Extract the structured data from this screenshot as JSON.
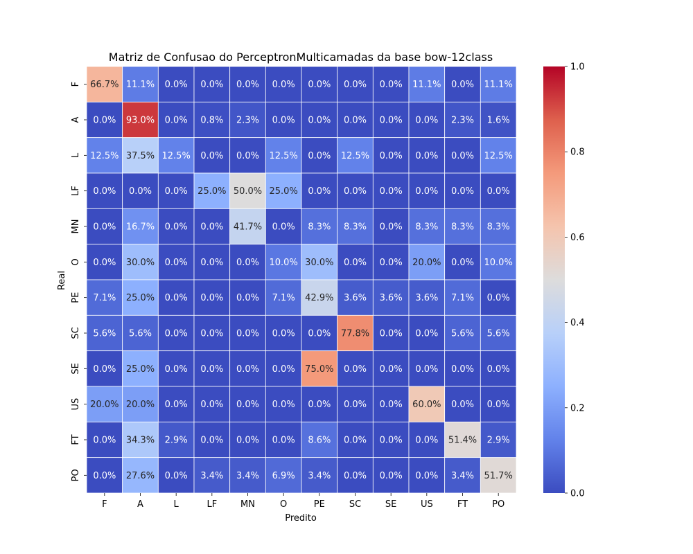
{
  "chart_data": {
    "type": "heatmap",
    "title": "Matriz de Confusao do PerceptronMulticamadas da base bow-12class",
    "xlabel": "Predito",
    "ylabel": "Real",
    "x_categories": [
      "F",
      "A",
      "L",
      "LF",
      "MN",
      "O",
      "PE",
      "SC",
      "SE",
      "US",
      "FT",
      "PO"
    ],
    "y_categories": [
      "F",
      "A",
      "L",
      "LF",
      "MN",
      "O",
      "PE",
      "SC",
      "SE",
      "US",
      "FT",
      "PO"
    ],
    "values": [
      [
        0.667,
        0.111,
        0.0,
        0.0,
        0.0,
        0.0,
        0.0,
        0.0,
        0.0,
        0.111,
        0.0,
        0.111
      ],
      [
        0.0,
        0.93,
        0.0,
        0.008,
        0.023,
        0.0,
        0.0,
        0.0,
        0.0,
        0.0,
        0.023,
        0.016
      ],
      [
        0.125,
        0.375,
        0.125,
        0.0,
        0.0,
        0.125,
        0.0,
        0.125,
        0.0,
        0.0,
        0.0,
        0.125
      ],
      [
        0.0,
        0.0,
        0.0,
        0.25,
        0.5,
        0.25,
        0.0,
        0.0,
        0.0,
        0.0,
        0.0,
        0.0
      ],
      [
        0.0,
        0.167,
        0.0,
        0.0,
        0.417,
        0.0,
        0.083,
        0.083,
        0.0,
        0.083,
        0.083,
        0.083
      ],
      [
        0.0,
        0.3,
        0.0,
        0.0,
        0.0,
        0.1,
        0.3,
        0.0,
        0.0,
        0.2,
        0.0,
        0.1
      ],
      [
        0.071,
        0.25,
        0.0,
        0.0,
        0.0,
        0.071,
        0.429,
        0.036,
        0.036,
        0.036,
        0.071,
        0.0
      ],
      [
        0.056,
        0.056,
        0.0,
        0.0,
        0.0,
        0.0,
        0.0,
        0.778,
        0.0,
        0.0,
        0.056,
        0.056
      ],
      [
        0.0,
        0.25,
        0.0,
        0.0,
        0.0,
        0.0,
        0.75,
        0.0,
        0.0,
        0.0,
        0.0,
        0.0
      ],
      [
        0.2,
        0.2,
        0.0,
        0.0,
        0.0,
        0.0,
        0.0,
        0.0,
        0.0,
        0.6,
        0.0,
        0.0
      ],
      [
        0.0,
        0.343,
        0.029,
        0.0,
        0.0,
        0.0,
        0.086,
        0.0,
        0.0,
        0.0,
        0.514,
        0.029
      ],
      [
        0.0,
        0.276,
        0.0,
        0.034,
        0.034,
        0.069,
        0.034,
        0.0,
        0.0,
        0.0,
        0.034,
        0.517
      ]
    ],
    "cell_labels": [
      [
        "66.7%",
        "11.1%",
        "0.0%",
        "0.0%",
        "0.0%",
        "0.0%",
        "0.0%",
        "0.0%",
        "0.0%",
        "11.1%",
        "0.0%",
        "11.1%"
      ],
      [
        "0.0%",
        "93.0%",
        "0.0%",
        "0.8%",
        "2.3%",
        "0.0%",
        "0.0%",
        "0.0%",
        "0.0%",
        "0.0%",
        "2.3%",
        "1.6%"
      ],
      [
        "12.5%",
        "37.5%",
        "12.5%",
        "0.0%",
        "0.0%",
        "12.5%",
        "0.0%",
        "12.5%",
        "0.0%",
        "0.0%",
        "0.0%",
        "12.5%"
      ],
      [
        "0.0%",
        "0.0%",
        "0.0%",
        "25.0%",
        "50.0%",
        "25.0%",
        "0.0%",
        "0.0%",
        "0.0%",
        "0.0%",
        "0.0%",
        "0.0%"
      ],
      [
        "0.0%",
        "16.7%",
        "0.0%",
        "0.0%",
        "41.7%",
        "0.0%",
        "8.3%",
        "8.3%",
        "0.0%",
        "8.3%",
        "8.3%",
        "8.3%"
      ],
      [
        "0.0%",
        "30.0%",
        "0.0%",
        "0.0%",
        "0.0%",
        "10.0%",
        "30.0%",
        "0.0%",
        "0.0%",
        "20.0%",
        "0.0%",
        "10.0%"
      ],
      [
        "7.1%",
        "25.0%",
        "0.0%",
        "0.0%",
        "0.0%",
        "7.1%",
        "42.9%",
        "3.6%",
        "3.6%",
        "3.6%",
        "7.1%",
        "0.0%"
      ],
      [
        "5.6%",
        "5.6%",
        "0.0%",
        "0.0%",
        "0.0%",
        "0.0%",
        "0.0%",
        "77.8%",
        "0.0%",
        "0.0%",
        "5.6%",
        "5.6%"
      ],
      [
        "0.0%",
        "25.0%",
        "0.0%",
        "0.0%",
        "0.0%",
        "0.0%",
        "75.0%",
        "0.0%",
        "0.0%",
        "0.0%",
        "0.0%",
        "0.0%"
      ],
      [
        "20.0%",
        "20.0%",
        "0.0%",
        "0.0%",
        "0.0%",
        "0.0%",
        "0.0%",
        "0.0%",
        "0.0%",
        "60.0%",
        "0.0%",
        "0.0%"
      ],
      [
        "0.0%",
        "34.3%",
        "2.9%",
        "0.0%",
        "0.0%",
        "0.0%",
        "8.6%",
        "0.0%",
        "0.0%",
        "0.0%",
        "51.4%",
        "2.9%"
      ],
      [
        "0.0%",
        "27.6%",
        "0.0%",
        "3.4%",
        "3.4%",
        "6.9%",
        "3.4%",
        "0.0%",
        "0.0%",
        "0.0%",
        "3.4%",
        "51.7%"
      ]
    ],
    "colormap": "coolwarm",
    "vmin": 0.0,
    "vmax": 1.0,
    "colorbar_ticks": [
      "0.0",
      "0.2",
      "0.4",
      "0.6",
      "0.8",
      "1.0"
    ],
    "grid": true,
    "grid_color": "#ffffff",
    "colorscale_stops": [
      "#3b4cc0",
      "#6282ea",
      "#8db0fe",
      "#b8d0f9",
      "#dddcdc",
      "#f5c4ad",
      "#f49a7b",
      "#de604d",
      "#b40426"
    ]
  }
}
